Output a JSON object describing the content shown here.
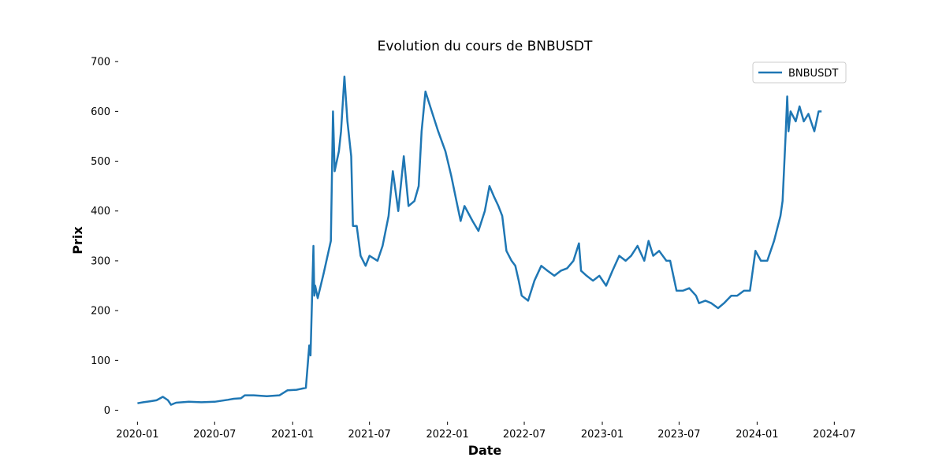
{
  "chart_data": {
    "type": "line",
    "title": "Evolution du cours de BNBUSDT",
    "xlabel": "Date",
    "ylabel": "Prix",
    "legend_position": "top-right",
    "grid": false,
    "ylim": [
      -15,
      705
    ],
    "xlim": [
      "2019-11-26",
      "2024-08-01"
    ],
    "yticks": [
      0,
      100,
      200,
      300,
      400,
      500,
      600,
      700
    ],
    "ytick_labels": [
      "0",
      "100",
      "200",
      "300",
      "400",
      "500",
      "600",
      "700"
    ],
    "xticks": [
      "2020-01-01",
      "2020-07-01",
      "2021-01-01",
      "2021-07-01",
      "2022-01-01",
      "2022-07-01",
      "2023-01-01",
      "2023-07-01",
      "2024-01-01",
      "2024-07-01"
    ],
    "xtick_labels": [
      "2020-01",
      "2020-07",
      "2021-01",
      "2021-07",
      "2022-01",
      "2022-07",
      "2023-01",
      "2023-07",
      "2024-01",
      "2024-07"
    ],
    "series": [
      {
        "name": "BNBUSDT",
        "color": "#1f77b4",
        "x": [
          "2020-01-01",
          "2020-01-15",
          "2020-02-01",
          "2020-02-15",
          "2020-03-01",
          "2020-03-13",
          "2020-03-20",
          "2020-04-01",
          "2020-05-01",
          "2020-06-01",
          "2020-07-01",
          "2020-08-01",
          "2020-08-15",
          "2020-09-01",
          "2020-09-10",
          "2020-10-01",
          "2020-11-01",
          "2020-12-01",
          "2020-12-20",
          "2021-01-10",
          "2021-02-01",
          "2021-02-09",
          "2021-02-12",
          "2021-02-19",
          "2021-02-21",
          "2021-02-23",
          "2021-03-01",
          "2021-03-15",
          "2021-04-01",
          "2021-04-06",
          "2021-04-10",
          "2021-04-20",
          "2021-04-25",
          "2021-05-03",
          "2021-05-10",
          "2021-05-19",
          "2021-05-23",
          "2021-06-01",
          "2021-06-10",
          "2021-06-22",
          "2021-07-01",
          "2021-07-20",
          "2021-08-01",
          "2021-08-15",
          "2021-08-25",
          "2021-09-07",
          "2021-09-20",
          "2021-10-01",
          "2021-10-15",
          "2021-10-25",
          "2021-11-01",
          "2021-11-10",
          "2021-11-25",
          "2021-12-10",
          "2021-12-27",
          "2022-01-10",
          "2022-01-22",
          "2022-02-01",
          "2022-02-10",
          "2022-03-01",
          "2022-03-15",
          "2022-03-30",
          "2022-04-10",
          "2022-04-20",
          "2022-05-01",
          "2022-05-10",
          "2022-05-20",
          "2022-06-01",
          "2022-06-10",
          "2022-06-18",
          "2022-06-25",
          "2022-07-10",
          "2022-07-25",
          "2022-08-10",
          "2022-08-25",
          "2022-09-10",
          "2022-09-25",
          "2022-10-10",
          "2022-10-25",
          "2022-11-07",
          "2022-11-12",
          "2022-11-25",
          "2022-12-10",
          "2022-12-25",
          "2023-01-10",
          "2023-01-25",
          "2023-02-10",
          "2023-02-25",
          "2023-03-10",
          "2023-03-25",
          "2023-04-10",
          "2023-04-20",
          "2023-05-01",
          "2023-05-15",
          "2023-06-01",
          "2023-06-10",
          "2023-06-25",
          "2023-07-10",
          "2023-07-25",
          "2023-08-10",
          "2023-08-17",
          "2023-09-01",
          "2023-09-15",
          "2023-10-01",
          "2023-10-15",
          "2023-11-01",
          "2023-11-15",
          "2023-12-01",
          "2023-12-15",
          "2023-12-28",
          "2024-01-10",
          "2024-01-25",
          "2024-02-10",
          "2024-02-25",
          "2024-03-01",
          "2024-03-08",
          "2024-03-12",
          "2024-03-15",
          "2024-03-20",
          "2024-04-01",
          "2024-04-10",
          "2024-04-20",
          "2024-05-01",
          "2024-05-15",
          "2024-05-25",
          "2024-06-01"
        ],
        "values": [
          14,
          16,
          18,
          20,
          27,
          20,
          11,
          15,
          17,
          16,
          17,
          21,
          23,
          24,
          30,
          30,
          28,
          30,
          40,
          41,
          45,
          130,
          110,
          330,
          230,
          250,
          225,
          275,
          340,
          600,
          480,
          520,
          560,
          670,
          580,
          510,
          370,
          370,
          310,
          290,
          310,
          300,
          330,
          390,
          480,
          400,
          510,
          410,
          420,
          450,
          560,
          640,
          600,
          560,
          520,
          470,
          420,
          380,
          410,
          380,
          360,
          400,
          450,
          430,
          410,
          390,
          320,
          300,
          290,
          260,
          230,
          220,
          260,
          290,
          280,
          270,
          280,
          285,
          300,
          335,
          280,
          270,
          260,
          270,
          250,
          280,
          310,
          300,
          310,
          330,
          300,
          340,
          310,
          320,
          300,
          300,
          240,
          240,
          245,
          230,
          215,
          220,
          215,
          205,
          215,
          230,
          230,
          240,
          240,
          320,
          300,
          300,
          340,
          390,
          420,
          550,
          630,
          560,
          600,
          580,
          610,
          580,
          595,
          560,
          600,
          600
        ]
      }
    ]
  }
}
